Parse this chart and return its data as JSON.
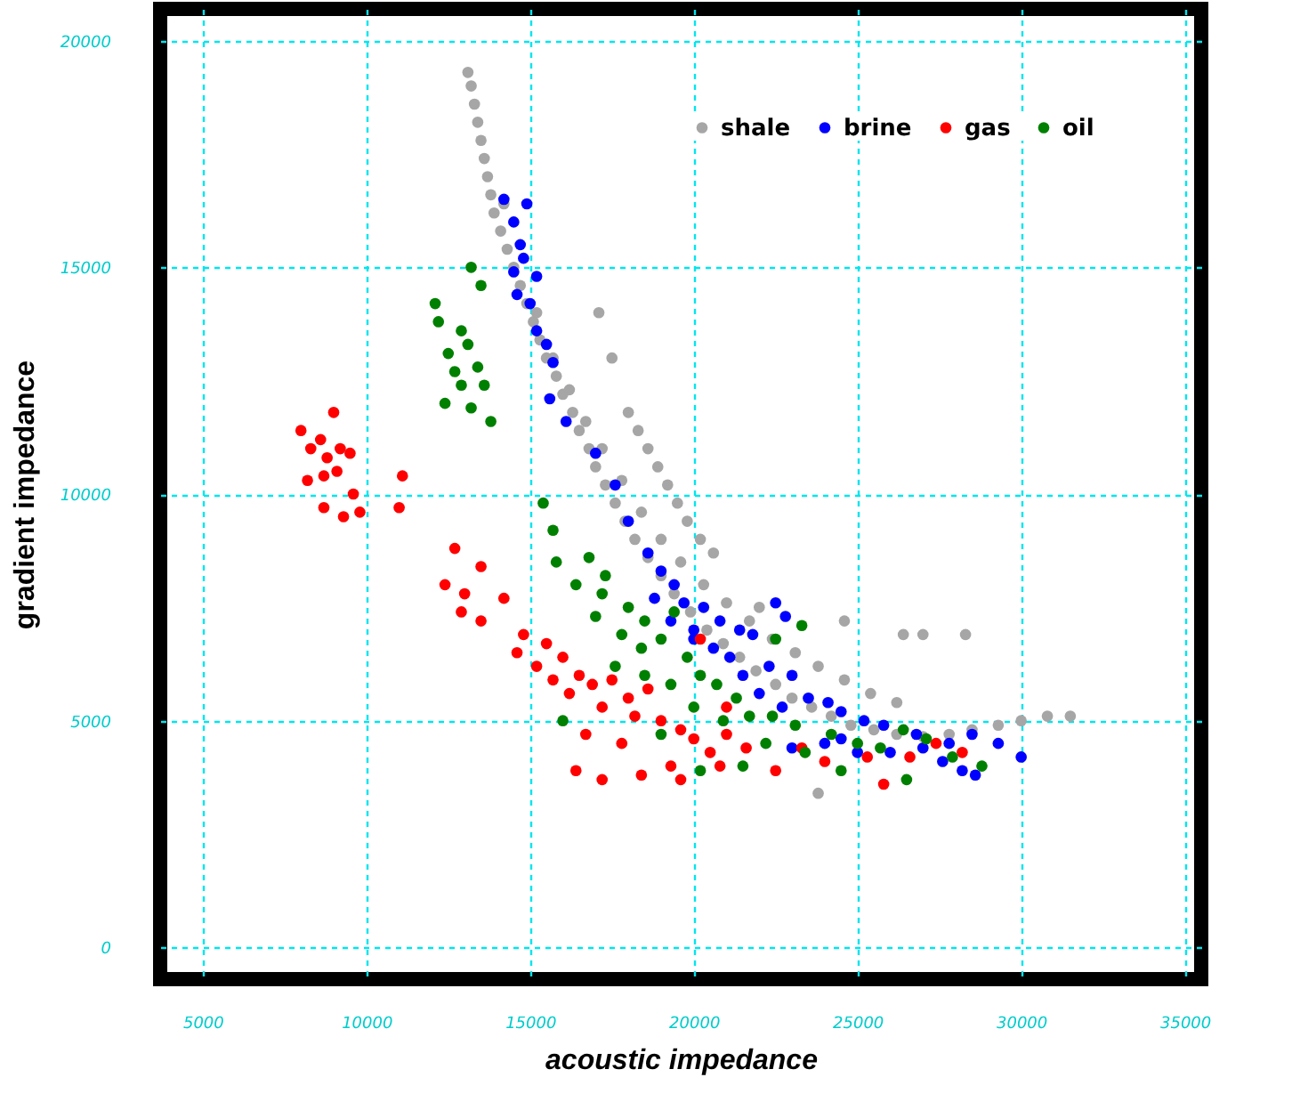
{
  "chart_data": {
    "type": "scatter",
    "xlabel": "acoustic impedance",
    "ylabel": "gradient impedance",
    "xlim": [
      3700,
      35500
    ],
    "ylim": [
      -700,
      20700
    ],
    "xticks": [
      5000,
      10000,
      15000,
      20000,
      25000,
      30000,
      35000
    ],
    "yticks": [
      0,
      5000,
      10000,
      15000,
      20000
    ],
    "grid": true,
    "legend": "top right",
    "marker": "circle",
    "series": [
      {
        "name": "shale",
        "color": "#a6a6a6",
        "x": [
          13100,
          13200,
          13300,
          13400,
          13500,
          13600,
          13700,
          13800,
          13900,
          14100,
          14300,
          14500,
          14700,
          14900,
          15100,
          15300,
          15500,
          15800,
          16000,
          16300,
          16500,
          16800,
          17000,
          17300,
          17600,
          17900,
          18200,
          18600,
          19000,
          19400,
          19900,
          20400,
          20900,
          21400,
          21900,
          22500,
          23000,
          23600,
          24200,
          24800,
          25500,
          26200,
          27000,
          27800,
          28500,
          29300,
          30000,
          30800,
          31500,
          14200,
          15200,
          15700,
          16200,
          16700,
          17200,
          17800,
          18400,
          19000,
          19600,
          20300,
          21000,
          21700,
          22400,
          23100,
          23800,
          24600,
          25400,
          26200,
          18000,
          18300,
          18600,
          18900,
          19200,
          19500,
          19800,
          20200,
          20600,
          17100,
          17500,
          26400,
          27000,
          28300,
          23800,
          24600,
          22000
        ],
        "values": [
          19300,
          19000,
          18600,
          18200,
          17800,
          17400,
          17000,
          16600,
          16200,
          15800,
          15400,
          15000,
          14600,
          14200,
          13800,
          13400,
          13000,
          12600,
          12200,
          11800,
          11400,
          11000,
          10600,
          10200,
          9800,
          9400,
          9000,
          8600,
          8200,
          7800,
          7400,
          7000,
          6700,
          6400,
          6100,
          5800,
          5500,
          5300,
          5100,
          4900,
          4800,
          4700,
          4650,
          4700,
          4800,
          4900,
          5000,
          5100,
          5100,
          16400,
          14000,
          13000,
          12300,
          11600,
          11000,
          10300,
          9600,
          9000,
          8500,
          8000,
          7600,
          7200,
          6800,
          6500,
          6200,
          5900,
          5600,
          5400,
          11800,
          11400,
          11000,
          10600,
          10200,
          9800,
          9400,
          9000,
          8700,
          14000,
          13000,
          6900,
          6900,
          6900,
          3400,
          7200,
          7500
        ]
      },
      {
        "name": "brine",
        "color": "#0000ff",
        "x": [
          14200,
          14900,
          14500,
          14700,
          14800,
          14500,
          15200,
          14600,
          15000,
          15200,
          15500,
          15700,
          15600,
          16100,
          17000,
          17600,
          18000,
          18600,
          19000,
          19400,
          19700,
          20300,
          20800,
          21400,
          20000,
          20600,
          21100,
          21800,
          22500,
          22800,
          21500,
          22300,
          23000,
          22000,
          22700,
          23500,
          24100,
          24500,
          25200,
          25800,
          26800,
          27600,
          24500,
          25000,
          26000,
          27000,
          27800,
          28500,
          29300,
          30000,
          28600,
          28200,
          23000,
          24000,
          20000,
          19300,
          18800
        ],
        "values": [
          16500,
          16400,
          16000,
          15500,
          15200,
          14900,
          14800,
          14400,
          14200,
          13600,
          13300,
          12900,
          12100,
          11600,
          10900,
          10200,
          9400,
          8700,
          8300,
          8000,
          7600,
          7500,
          7200,
          7000,
          6800,
          6600,
          6400,
          6900,
          7600,
          7300,
          6000,
          6200,
          6000,
          5600,
          5300,
          5500,
          5400,
          5200,
          5000,
          4900,
          4700,
          4100,
          4600,
          4300,
          4300,
          4400,
          4500,
          4700,
          4500,
          4200,
          3800,
          3900,
          4400,
          4500,
          7000,
          7200,
          7700
        ]
      },
      {
        "name": "gas",
        "color": "#ff0000",
        "x": [
          8000,
          8300,
          8600,
          9000,
          9200,
          8800,
          9500,
          8200,
          8700,
          9100,
          9600,
          8700,
          9300,
          9800,
          11000,
          11100,
          12700,
          13500,
          12400,
          13000,
          14200,
          12900,
          13500,
          14800,
          15500,
          14600,
          15200,
          16000,
          16500,
          15700,
          16200,
          16900,
          17500,
          17200,
          18000,
          18600,
          18200,
          19000,
          19600,
          16700,
          17800,
          20000,
          20500,
          21000,
          21600,
          19300,
          20800,
          18400,
          19600,
          16400,
          17200,
          22500,
          23300,
          24000,
          25300,
          25800,
          26600,
          27400,
          28200,
          20200,
          21000
        ],
        "values": [
          11400,
          11000,
          11200,
          11800,
          11000,
          10800,
          10900,
          10300,
          10400,
          10500,
          10000,
          9700,
          9500,
          9600,
          9700,
          10400,
          8800,
          8400,
          8000,
          7800,
          7700,
          7400,
          7200,
          6900,
          6700,
          6500,
          6200,
          6400,
          6000,
          5900,
          5600,
          5800,
          5900,
          5300,
          5500,
          5700,
          5100,
          5000,
          4800,
          4700,
          4500,
          4600,
          4300,
          4700,
          4400,
          4000,
          4000,
          3800,
          3700,
          3900,
          3700,
          3900,
          4400,
          4100,
          4200,
          3600,
          4200,
          4500,
          4300,
          6800,
          5300
        ]
      },
      {
        "name": "oil",
        "color": "#008000",
        "x": [
          12100,
          13200,
          13500,
          12200,
          12900,
          13100,
          12500,
          13400,
          12700,
          12900,
          13600,
          12400,
          13200,
          13800,
          15400,
          15700,
          15800,
          16800,
          17300,
          16400,
          17200,
          18000,
          18500,
          17000,
          17800,
          18400,
          19000,
          19400,
          19800,
          17600,
          18500,
          19300,
          20200,
          20700,
          21300,
          20000,
          20900,
          21700,
          22400,
          23100,
          22200,
          23400,
          24200,
          25000,
          25700,
          26400,
          27100,
          27900,
          28800,
          21500,
          20200,
          24500,
          22500,
          16000,
          19000,
          26500,
          23300
        ],
        "values": [
          14200,
          15000,
          14600,
          13800,
          13600,
          13300,
          13100,
          12800,
          12700,
          12400,
          12400,
          12000,
          11900,
          11600,
          9800,
          9200,
          8500,
          8600,
          8200,
          8000,
          7800,
          7500,
          7200,
          7300,
          6900,
          6600,
          6800,
          7400,
          6400,
          6200,
          6000,
          5800,
          6000,
          5800,
          5500,
          5300,
          5000,
          5100,
          5100,
          4900,
          4500,
          4300,
          4700,
          4500,
          4400,
          4800,
          4600,
          4200,
          4000,
          4000,
          3900,
          3900,
          6800,
          5000,
          4700,
          3700,
          7100
        ]
      }
    ]
  }
}
